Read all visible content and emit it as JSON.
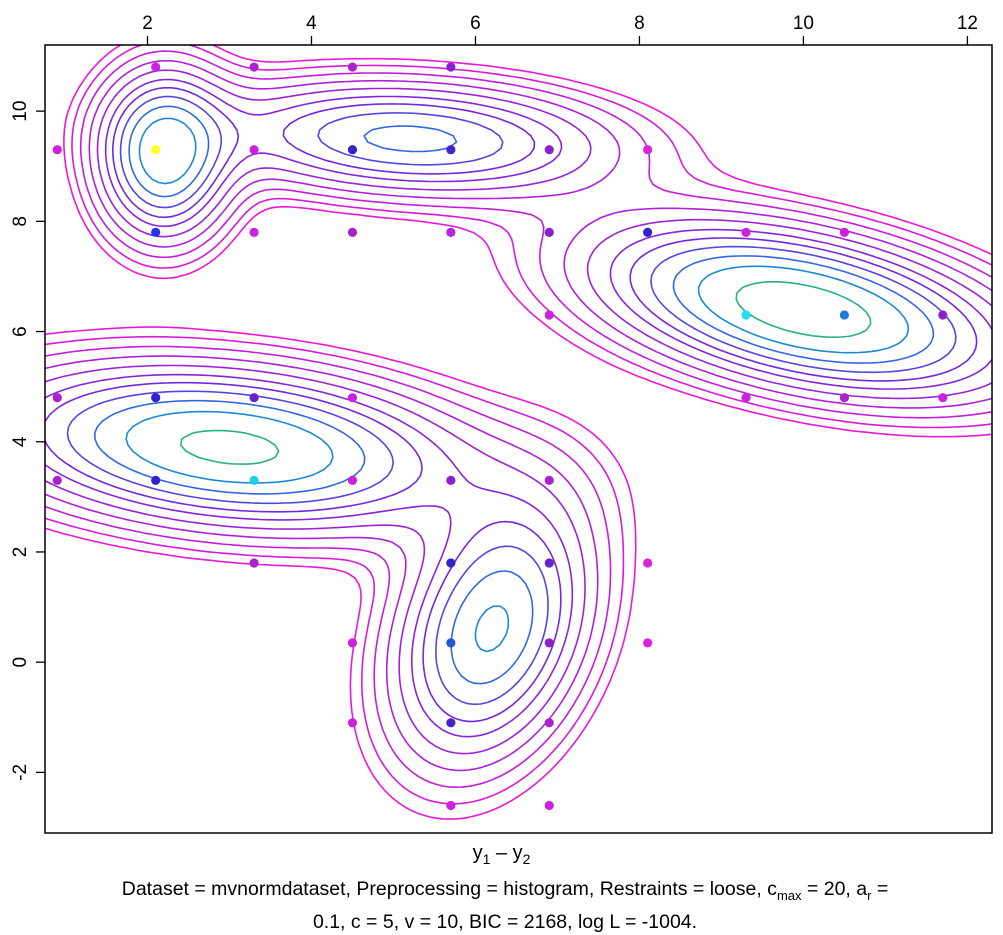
{
  "chart_data": {
    "type": "contour",
    "xlim": [
      0.75,
      12.3
    ],
    "ylim": [
      -3.1,
      11.2
    ],
    "x_ticks": [
      2,
      4,
      6,
      8,
      10,
      12
    ],
    "y_ticks": [
      -2,
      0,
      2,
      4,
      6,
      8,
      10
    ],
    "x_tick_labels": [
      "2",
      "4",
      "6",
      "8",
      "10",
      "12"
    ],
    "y_tick_labels": [
      "-2",
      "0",
      "2",
      "4",
      "6",
      "8",
      "10"
    ],
    "x_axis_position": "top",
    "y_axis_position": "left",
    "xlabel": {
      "main": "y",
      "sub1": "1",
      "dash": " – ",
      "main2": "y",
      "sub2": "2"
    },
    "caption": {
      "line1_prefix": "Dataset = mvnormdataset, Preprocessing = histogram, Restraints = loose, c",
      "cmax_sub": "max",
      "line1_mid": " = 20, a",
      "ar_sub": "r",
      "line1_suffix": " =",
      "line2": "0.1, c = 5, v = 10, BIC = 2168, log L = -1004."
    },
    "components": [
      {
        "mean": [
          2.2,
          9.2
        ],
        "sx": 0.5,
        "sy": 0.95,
        "rho": 0.0,
        "weight": 0.3
      },
      {
        "mean": [
          5.2,
          9.5
        ],
        "sx": 1.55,
        "sy": 0.65,
        "rho": -0.15,
        "weight": 0.24
      },
      {
        "mean": [
          3.0,
          3.9
        ],
        "sx": 1.75,
        "sy": 0.9,
        "rho": -0.25,
        "weight": 0.35
      },
      {
        "mean": [
          6.2,
          0.6
        ],
        "sx": 0.75,
        "sy": 1.5,
        "rho": 0.3,
        "weight": 0.28
      },
      {
        "mean": [
          10.0,
          6.4
        ],
        "sx": 1.55,
        "sy": 0.95,
        "rho": -0.45,
        "weight": 0.38
      }
    ],
    "contour_levels": [
      0.02,
      0.03,
      0.045,
      0.065,
      0.09,
      0.12,
      0.15,
      0.185,
      0.225,
      0.27,
      0.33,
      0.45
    ],
    "points": [
      {
        "x": 2.1,
        "y": 10.8,
        "color": "#cc22dd"
      },
      {
        "x": 3.3,
        "y": 10.8,
        "color": "#aa22cc"
      },
      {
        "x": 4.5,
        "y": 10.8,
        "color": "#aa22cc"
      },
      {
        "x": 5.7,
        "y": 10.8,
        "color": "#8822cc"
      },
      {
        "x": 0.9,
        "y": 9.3,
        "color": "#cc22dd"
      },
      {
        "x": 2.1,
        "y": 9.3,
        "color": "#ffff22"
      },
      {
        "x": 3.3,
        "y": 9.3,
        "color": "#cc22dd"
      },
      {
        "x": 4.5,
        "y": 9.3,
        "color": "#3322cc"
      },
      {
        "x": 5.7,
        "y": 9.3,
        "color": "#4422cc"
      },
      {
        "x": 6.9,
        "y": 9.3,
        "color": "#8822cc"
      },
      {
        "x": 8.1,
        "y": 9.3,
        "color": "#dd22dd"
      },
      {
        "x": 2.1,
        "y": 7.8,
        "color": "#2233ee"
      },
      {
        "x": 3.3,
        "y": 7.8,
        "color": "#cc22dd"
      },
      {
        "x": 4.5,
        "y": 7.8,
        "color": "#aa22cc"
      },
      {
        "x": 5.7,
        "y": 7.8,
        "color": "#bb22dd"
      },
      {
        "x": 6.9,
        "y": 7.8,
        "color": "#8822cc"
      },
      {
        "x": 8.1,
        "y": 7.8,
        "color": "#3322cc"
      },
      {
        "x": 9.3,
        "y": 7.8,
        "color": "#cc22dd"
      },
      {
        "x": 10.5,
        "y": 7.8,
        "color": "#cc22dd"
      },
      {
        "x": 6.9,
        "y": 6.3,
        "color": "#cc22dd"
      },
      {
        "x": 9.3,
        "y": 6.3,
        "color": "#22ddee"
      },
      {
        "x": 10.5,
        "y": 6.3,
        "color": "#2277dd"
      },
      {
        "x": 11.7,
        "y": 6.3,
        "color": "#8822cc"
      },
      {
        "x": 0.9,
        "y": 4.8,
        "color": "#aa22cc"
      },
      {
        "x": 2.1,
        "y": 4.8,
        "color": "#3322cc"
      },
      {
        "x": 3.3,
        "y": 4.8,
        "color": "#6622cc"
      },
      {
        "x": 4.5,
        "y": 4.8,
        "color": "#cc22dd"
      },
      {
        "x": 9.3,
        "y": 4.8,
        "color": "#cc22dd"
      },
      {
        "x": 10.5,
        "y": 4.8,
        "color": "#aa22cc"
      },
      {
        "x": 11.7,
        "y": 4.8,
        "color": "#cc22dd"
      },
      {
        "x": 0.9,
        "y": 3.3,
        "color": "#aa22cc"
      },
      {
        "x": 2.1,
        "y": 3.3,
        "color": "#3322cc"
      },
      {
        "x": 3.3,
        "y": 3.3,
        "color": "#22ccee"
      },
      {
        "x": 4.5,
        "y": 3.3,
        "color": "#cc22dd"
      },
      {
        "x": 5.7,
        "y": 3.3,
        "color": "#8822cc"
      },
      {
        "x": 6.9,
        "y": 3.3,
        "color": "#aa22cc"
      },
      {
        "x": 3.3,
        "y": 1.8,
        "color": "#aa22cc"
      },
      {
        "x": 5.7,
        "y": 1.8,
        "color": "#3322cc"
      },
      {
        "x": 6.9,
        "y": 1.8,
        "color": "#6622cc"
      },
      {
        "x": 8.1,
        "y": 1.8,
        "color": "#dd22dd"
      },
      {
        "x": 4.5,
        "y": 0.35,
        "color": "#cc22dd"
      },
      {
        "x": 5.7,
        "y": 0.35,
        "color": "#2255dd"
      },
      {
        "x": 6.9,
        "y": 0.35,
        "color": "#8822cc"
      },
      {
        "x": 8.1,
        "y": 0.35,
        "color": "#dd22dd"
      },
      {
        "x": 4.5,
        "y": -1.1,
        "color": "#cc22dd"
      },
      {
        "x": 5.7,
        "y": -1.1,
        "color": "#4422cc"
      },
      {
        "x": 6.9,
        "y": -1.1,
        "color": "#aa22cc"
      },
      {
        "x": 5.7,
        "y": -2.6,
        "color": "#cc22dd"
      },
      {
        "x": 6.9,
        "y": -2.6,
        "color": "#cc22dd"
      }
    ]
  }
}
